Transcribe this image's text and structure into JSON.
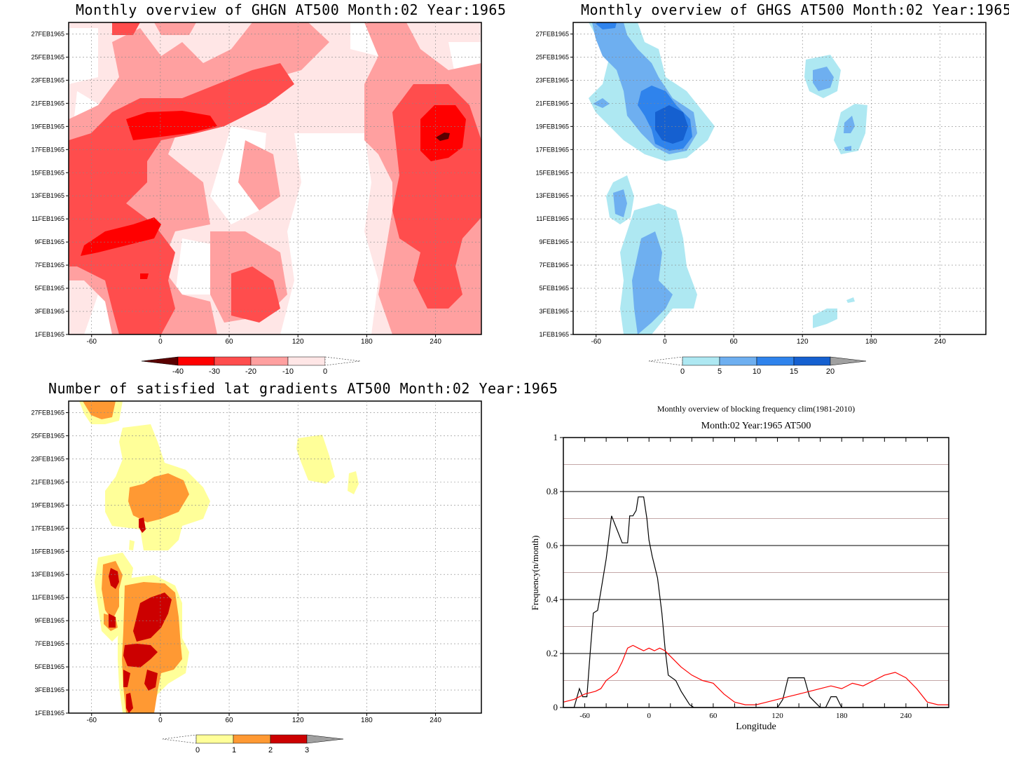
{
  "panels": {
    "ghgn": {
      "title": "Monthly overview of GHGN AT500 Month:02 Year:1965",
      "colorbar_labels": [
        "-40",
        "-30",
        "-20",
        "-10",
        "0"
      ],
      "colors": [
        "#5a0000",
        "#ff0000",
        "#ff4d4d",
        "#ffa0a0",
        "#ffe6e6",
        "#ffffff"
      ]
    },
    "ghgs": {
      "title": "Monthly overview of GHGS AT500 Month:02 Year:1965",
      "colorbar_labels": [
        "0",
        "5",
        "10",
        "15",
        "20"
      ],
      "colors": [
        "#ffffff",
        "#aee8f2",
        "#6eaff0",
        "#2f83ec",
        "#1560d0",
        "#a0a0a0"
      ]
    },
    "lat": {
      "title": "Number of satisfied lat gradients AT500 Month:02 Year:1965",
      "colorbar_labels": [
        "0",
        "1",
        "2",
        "3"
      ],
      "colors": [
        "#ffffff",
        "#ffff99",
        "#ff9933",
        "#cc0000",
        "#a0a0a0"
      ]
    },
    "freq": {
      "title": "Monthly overview of blocking frequency clim(1981-2010)",
      "subtitle": "Month:02 Year:1965  AT500",
      "xlabel": "Longitude",
      "ylabel": "Frequency(n/month)"
    }
  },
  "date_ticks": [
    "1FEB1965",
    "3FEB1965",
    "5FEB1965",
    "7FEB1965",
    "9FEB1965",
    "11FEB1965",
    "13FEB1965",
    "15FEB1965",
    "17FEB1965",
    "19FEB1965",
    "21FEB1965",
    "23FEB1965",
    "25FEB1965",
    "27FEB1965"
  ],
  "lon_ticks": [
    "-60",
    "0",
    "60",
    "120",
    "180",
    "240"
  ],
  "chart_data": [
    {
      "type": "heatmap",
      "title": "Monthly overview of GHGN AT500 Month:02 Year:1965",
      "x_ticks": [
        -60,
        0,
        60,
        120,
        180,
        240
      ],
      "y_ticks": [
        "1FEB1965",
        "3FEB1965",
        "5FEB1965",
        "7FEB1965",
        "9FEB1965",
        "11FEB1965",
        "13FEB1965",
        "15FEB1965",
        "17FEB1965",
        "19FEB1965",
        "21FEB1965",
        "23FEB1965",
        "25FEB1965",
        "27FEB1965"
      ],
      "levels": [
        -40,
        -30,
        -20,
        -10,
        0
      ],
      "xlim": [
        -80,
        280
      ],
      "ylim": [
        "1FEB1965",
        "28FEB1965"
      ]
    },
    {
      "type": "heatmap",
      "title": "Monthly overview of GHGS AT500 Month:02 Year:1965",
      "x_ticks": [
        -60,
        0,
        60,
        120,
        180,
        240
      ],
      "y_ticks": [
        "1FEB1965",
        "3FEB1965",
        "5FEB1965",
        "7FEB1965",
        "9FEB1965",
        "11FEB1965",
        "13FEB1965",
        "15FEB1965",
        "17FEB1965",
        "19FEB1965",
        "21FEB1965",
        "23FEB1965",
        "25FEB1965",
        "27FEB1965"
      ],
      "levels": [
        0,
        5,
        10,
        15,
        20
      ],
      "xlim": [
        -80,
        280
      ],
      "ylim": [
        "1FEB1965",
        "28FEB1965"
      ]
    },
    {
      "type": "heatmap",
      "title": "Number of satisfied lat gradients AT500 Month:02 Year:1965",
      "x_ticks": [
        -60,
        0,
        60,
        120,
        180,
        240
      ],
      "y_ticks": [
        "1FEB1965",
        "3FEB1965",
        "5FEB1965",
        "7FEB1965",
        "9FEB1965",
        "11FEB1965",
        "13FEB1965",
        "15FEB1965",
        "17FEB1965",
        "19FEB1965",
        "21FEB1965",
        "23FEB1965",
        "25FEB1965",
        "27FEB1965"
      ],
      "levels": [
        0,
        1,
        2,
        3
      ],
      "xlim": [
        -80,
        280
      ],
      "ylim": [
        "1FEB1965",
        "28FEB1965"
      ]
    },
    {
      "type": "line",
      "title": "Monthly overview of blocking frequency clim(1981-2010)",
      "subtitle": "Month:02 Year:1965  AT500",
      "xlabel": "Longitude",
      "ylabel": "Frequency(n/month)",
      "xlim": [
        -80,
        280
      ],
      "ylim": [
        0,
        1
      ],
      "x_ticks": [
        -60,
        0,
        60,
        120,
        180,
        240
      ],
      "y_ticks": [
        0,
        0.2,
        0.4,
        0.6,
        0.8,
        1
      ],
      "grid": true,
      "series": [
        {
          "color": "#000000",
          "x": [
            -80,
            -70,
            -65,
            -62,
            -58,
            -55,
            -52,
            -48,
            -45,
            -40,
            -35,
            -30,
            -25,
            -20,
            -18,
            -15,
            -12,
            -10,
            -5,
            -2,
            0,
            3,
            8,
            12,
            15,
            18,
            25,
            30,
            38,
            42,
            45,
            50,
            60,
            80,
            100,
            120,
            125,
            130,
            140,
            145,
            150,
            155,
            160,
            165,
            170,
            175,
            180,
            200,
            220,
            240,
            260,
            280
          ],
          "y": [
            0,
            0,
            0.07,
            0.04,
            0.04,
            0.2,
            0.35,
            0.36,
            0.43,
            0.55,
            0.71,
            0.66,
            0.61,
            0.61,
            0.71,
            0.71,
            0.73,
            0.78,
            0.78,
            0.7,
            0.62,
            0.56,
            0.48,
            0.35,
            0.22,
            0.12,
            0.1,
            0.06,
            0.01,
            0,
            0,
            0,
            0,
            0,
            0,
            0,
            0.03,
            0.11,
            0.11,
            0.11,
            0.04,
            0.02,
            0,
            0,
            0.04,
            0.04,
            0,
            0,
            0,
            0,
            0,
            0
          ]
        },
        {
          "color": "#ff0000",
          "x": [
            -80,
            -70,
            -60,
            -50,
            -45,
            -40,
            -30,
            -25,
            -20,
            -15,
            -10,
            -5,
            0,
            5,
            10,
            15,
            20,
            25,
            30,
            40,
            50,
            60,
            70,
            80,
            90,
            100,
            110,
            120,
            130,
            140,
            150,
            160,
            170,
            180,
            190,
            200,
            210,
            220,
            230,
            240,
            250,
            260,
            270,
            280
          ],
          "y": [
            0.02,
            0.03,
            0.05,
            0.06,
            0.07,
            0.1,
            0.13,
            0.17,
            0.22,
            0.23,
            0.22,
            0.21,
            0.22,
            0.21,
            0.22,
            0.21,
            0.19,
            0.17,
            0.15,
            0.12,
            0.1,
            0.09,
            0.05,
            0.02,
            0.01,
            0.01,
            0.02,
            0.03,
            0.04,
            0.05,
            0.06,
            0.07,
            0.08,
            0.07,
            0.09,
            0.08,
            0.1,
            0.12,
            0.13,
            0.11,
            0.07,
            0.02,
            0.01,
            0.01
          ]
        }
      ]
    }
  ]
}
